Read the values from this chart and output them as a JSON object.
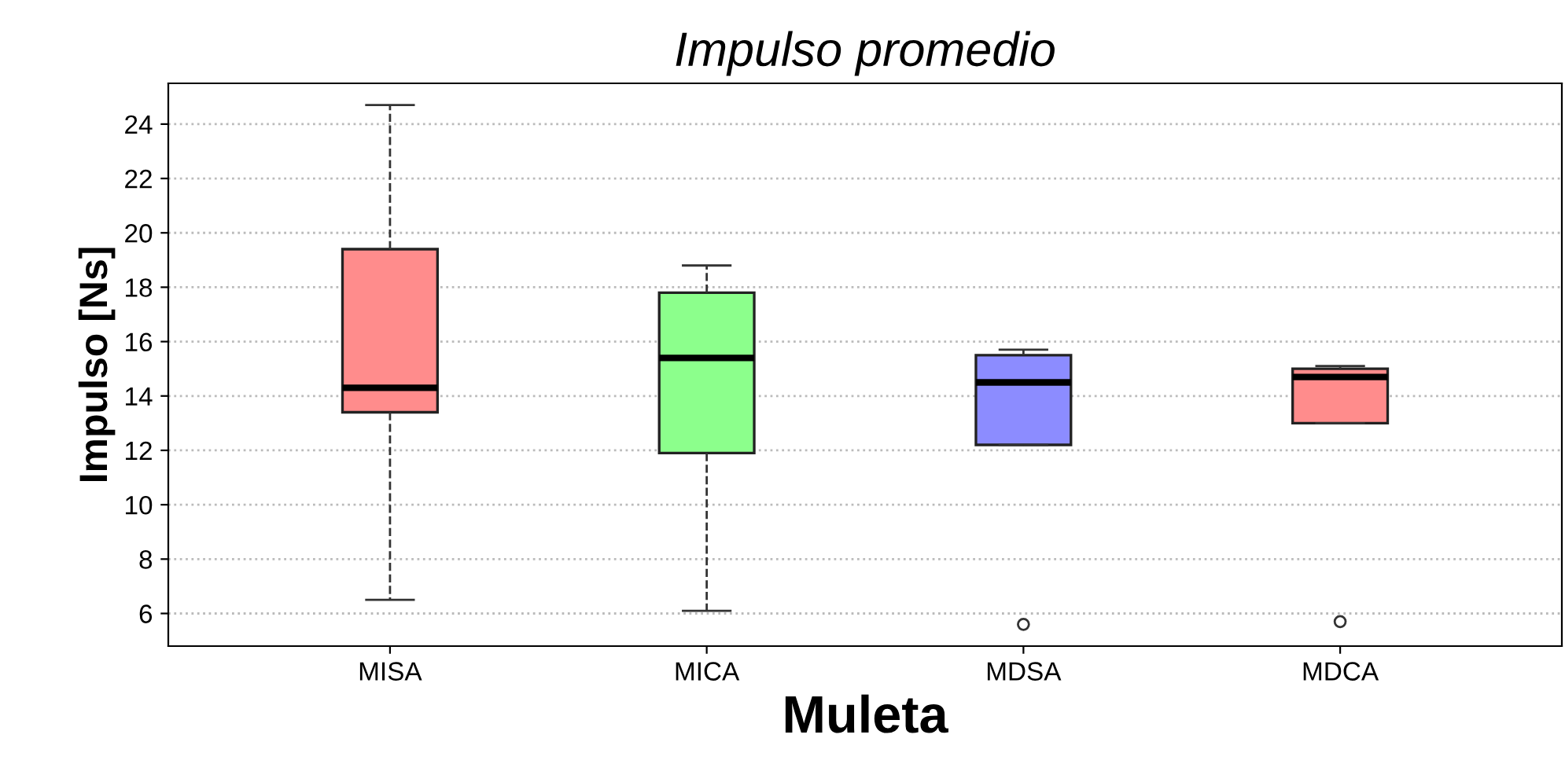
{
  "chart_data": {
    "type": "box",
    "title": "Impulso promedio",
    "xlabel": "Muleta",
    "ylabel": "Impulso [Ns]",
    "categories": [
      "MISA",
      "MICA",
      "MDSA",
      "MDCA"
    ],
    "colors": [
      "#ff8c8c",
      "#8cff8c",
      "#8c8cff",
      "#ff8c8c"
    ],
    "boxes": [
      {
        "low": 6.5,
        "q1": 13.4,
        "median": 14.3,
        "q3": 19.4,
        "high": 24.7
      },
      {
        "low": 6.1,
        "q1": 11.9,
        "median": 15.4,
        "q3": 17.8,
        "high": 18.8
      },
      {
        "low": 12.2,
        "q1": 12.2,
        "median": 14.5,
        "q3": 15.5,
        "high": 15.7,
        "outliers": [
          5.6
        ]
      },
      {
        "low": 13.0,
        "q1": 13.0,
        "median": 14.7,
        "q3": 15.0,
        "high": 15.1,
        "outliers": [
          5.7
        ]
      }
    ],
    "ylim": [
      4.8,
      25.5
    ],
    "yticks": [
      6,
      8,
      10,
      12,
      14,
      16,
      18,
      20,
      22,
      24
    ],
    "grid": "y",
    "legend": false
  }
}
